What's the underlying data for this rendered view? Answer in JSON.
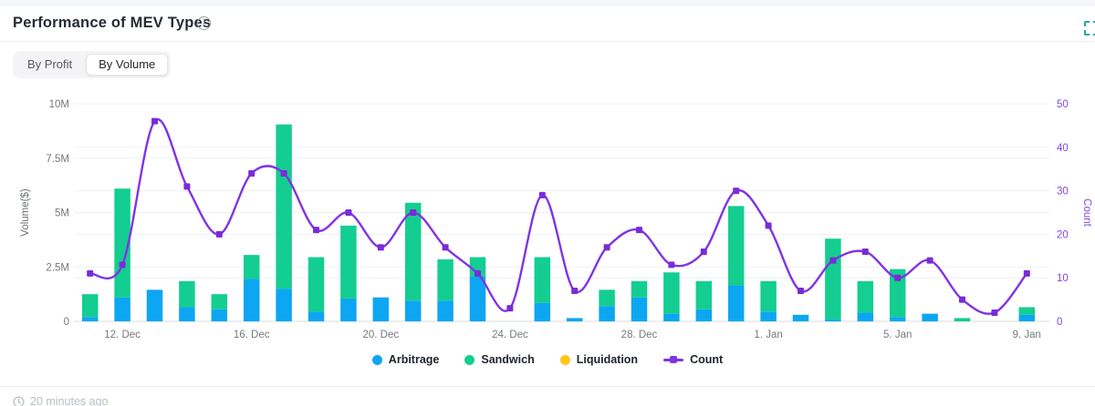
{
  "header": {
    "title": "Performance of MEV Types",
    "info_glyph": "i"
  },
  "tabs": {
    "items": [
      {
        "label": "By Profit"
      },
      {
        "label": "By Volume"
      }
    ],
    "active_index": 1
  },
  "chart_data": {
    "type": "bar-line-combo",
    "num_points": 30,
    "x_tick_labels": [
      {
        "label": "12. Dec",
        "index": 1
      },
      {
        "label": "16. Dec",
        "index": 5
      },
      {
        "label": "20. Dec",
        "index": 9
      },
      {
        "label": "24. Dec",
        "index": 13
      },
      {
        "label": "28. Dec",
        "index": 17
      },
      {
        "label": "1. Jan",
        "index": 21
      },
      {
        "label": "5. Jan",
        "index": 25
      },
      {
        "label": "9. Jan",
        "index": 29
      }
    ],
    "bar_series": [
      {
        "name": "Arbitrage",
        "color": "#0da6f2",
        "values_musd": [
          0.2,
          1.1,
          1.45,
          0.65,
          0.55,
          1.95,
          1.5,
          0.45,
          1.05,
          1.1,
          0.95,
          0.95,
          2.05,
          0,
          0.85,
          0.15,
          0.7,
          1.1,
          0.35,
          0.55,
          1.65,
          0.45,
          0.3,
          0.1,
          0.4,
          0.2,
          0.35,
          0,
          0,
          0.3
        ]
      },
      {
        "name": "Sandwich",
        "color": "#13ce90",
        "values_musd": [
          1.05,
          5.0,
          0,
          1.2,
          0.7,
          1.1,
          7.55,
          2.5,
          3.35,
          0,
          4.5,
          1.9,
          0.9,
          0,
          2.1,
          0,
          0.75,
          0.75,
          1.9,
          1.3,
          3.65,
          1.4,
          0,
          3.7,
          1.45,
          2.2,
          0,
          0.15,
          0,
          0.35
        ]
      },
      {
        "name": "Liquidation",
        "color": "#ffc61a",
        "values_musd": [
          0,
          0,
          0,
          0,
          0,
          0,
          0,
          0,
          0,
          0,
          0,
          0,
          0,
          0,
          0,
          0,
          0,
          0,
          0,
          0,
          0,
          0,
          0,
          0,
          0,
          0,
          0,
          0,
          0,
          0
        ]
      }
    ],
    "line_series": {
      "name": "Count",
      "color": "#8134e3",
      "marker_color": "#7a2bd8",
      "axis": "right",
      "values": [
        11,
        13,
        46,
        31,
        20,
        34,
        34,
        21,
        25,
        17,
        25,
        17,
        11,
        3,
        29,
        7,
        17,
        21,
        13,
        16,
        30,
        22,
        7,
        14,
        16,
        10,
        14,
        5,
        2,
        11
      ]
    },
    "left_axis": {
      "name": "Volume($)",
      "ticks": [
        "0",
        "2.5M",
        "5M",
        "7.5M",
        "10M"
      ],
      "max_musd": 10,
      "label_color": "#75797e",
      "name_color": "#6d7177"
    },
    "right_axis": {
      "name": "Count",
      "ticks": [
        "0",
        "10",
        "20",
        "30",
        "40",
        "50"
      ],
      "max": 50,
      "label_color": "#8247e5",
      "name_color": "#8247e5"
    },
    "grid": {
      "line_color": "#edf0f5",
      "zero_line_color": "#d8dce3",
      "x_label_color": "#75797e"
    }
  },
  "legend": [
    {
      "label": "Arbitrage",
      "color": "#0da6f2",
      "swatch": "circle"
    },
    {
      "label": "Sandwich",
      "color": "#13ce90",
      "swatch": "circle"
    },
    {
      "label": "Liquidation",
      "color": "#ffc61a",
      "swatch": "circle"
    },
    {
      "label": "Count",
      "color": "#8134e3",
      "swatch": "line-square"
    }
  ],
  "footer": {
    "updated_text": "20 minutes ago"
  }
}
